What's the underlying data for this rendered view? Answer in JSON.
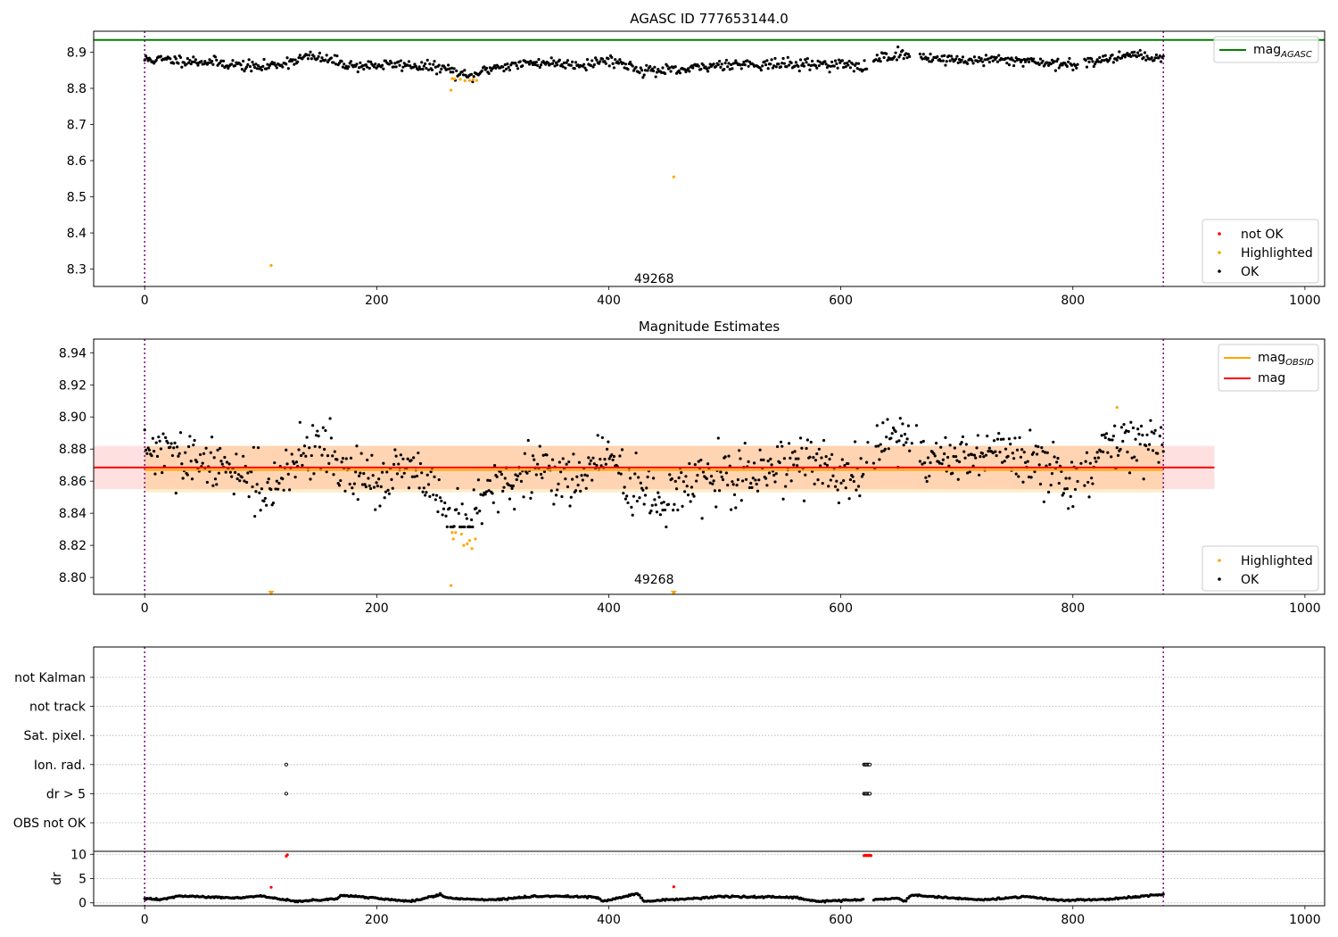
{
  "chart_data": [
    {
      "type": "scatter",
      "title": "AGASC ID 777653144.0",
      "xlim": [
        -44,
        1017
      ],
      "ylim": [
        8.252,
        8.958
      ],
      "xticks": [
        0,
        200,
        400,
        600,
        800,
        1000
      ],
      "yticks": [
        8.3,
        8.4,
        8.5,
        8.6,
        8.7,
        8.8,
        8.9
      ],
      "ytick_labels": [
        "8.3",
        "8.4",
        "8.5",
        "8.6",
        "8.7",
        "8.8",
        "8.9"
      ],
      "vlines": [
        0,
        878
      ],
      "annotation": {
        "text": "49268",
        "x": 439,
        "y": 8.262
      },
      "hline": {
        "name": "mag_AGASC",
        "label_base": "mag",
        "label_sub": "AGASC",
        "y": 8.934,
        "color": "#008000"
      },
      "legend_lines_position": "upper right",
      "legend_points_position": "lower right",
      "ok_series": {
        "name": "OK",
        "color": "#000000",
        "count": 880,
        "x_range": [
          0,
          878
        ],
        "baseline_knots": [
          [
            0,
            8.88
          ],
          [
            30,
            8.878
          ],
          [
            60,
            8.872
          ],
          [
            100,
            8.858
          ],
          [
            120,
            8.87
          ],
          [
            140,
            8.888
          ],
          [
            160,
            8.878
          ],
          [
            180,
            8.862
          ],
          [
            220,
            8.866
          ],
          [
            260,
            8.855
          ],
          [
            270,
            8.84
          ],
          [
            280,
            8.83
          ],
          [
            290,
            8.845
          ],
          [
            300,
            8.858
          ],
          [
            340,
            8.872
          ],
          [
            380,
            8.866
          ],
          [
            400,
            8.88
          ],
          [
            430,
            8.85
          ],
          [
            460,
            8.848
          ],
          [
            500,
            8.868
          ],
          [
            560,
            8.866
          ],
          [
            600,
            8.868
          ],
          [
            620,
            8.855
          ],
          [
            630,
            8.885
          ],
          [
            650,
            8.893
          ],
          [
            700,
            8.878
          ],
          [
            760,
            8.878
          ],
          [
            800,
            8.862
          ],
          [
            830,
            8.885
          ],
          [
            850,
            8.895
          ],
          [
            878,
            8.885
          ]
        ],
        "scatter_sd": 0.0075,
        "gaps": [
          [
            620,
            628
          ],
          [
            660,
            668
          ],
          [
            805,
            810
          ]
        ]
      },
      "series": [
        {
          "name": "not OK",
          "color": "#ff0000",
          "points": []
        },
        {
          "name": "Highlighted",
          "color": "#ffa500",
          "points": [
            [
              109,
              8.31
            ],
            [
              264,
              8.795
            ],
            [
              265,
              8.827
            ],
            [
              267,
              8.826
            ],
            [
              272,
              8.825
            ],
            [
              276,
              8.821
            ],
            [
              280,
              8.822
            ],
            [
              283,
              8.824
            ],
            [
              286,
              8.822
            ],
            [
              456,
              8.555
            ]
          ]
        }
      ]
    },
    {
      "type": "scatter",
      "title": "Magnitude Estimates",
      "xlim": [
        -44,
        1017
      ],
      "ylim": [
        8.7895,
        8.9485
      ],
      "xticks": [
        0,
        200,
        400,
        600,
        800,
        1000
      ],
      "yticks": [
        8.8,
        8.82,
        8.84,
        8.86,
        8.88,
        8.9,
        8.92,
        8.94
      ],
      "ytick_labels": [
        "8.80",
        "8.82",
        "8.84",
        "8.86",
        "8.88",
        "8.90",
        "8.92",
        "8.94"
      ],
      "vlines": [
        0,
        878
      ],
      "annotation": {
        "text": "49268",
        "x": 439,
        "y": 8.795
      },
      "lines": [
        {
          "name": "mag_OBSID",
          "label_base": "mag",
          "label_sub": "OBSID",
          "y": 8.867,
          "x_range": [
            0,
            878
          ],
          "color": "#ffa500",
          "band": [
            8.853,
            8.882
          ]
        },
        {
          "name": "mag",
          "label_base": "mag",
          "label_sub": "",
          "y": 8.8685,
          "x_range": [
            -44,
            922
          ],
          "color": "#ff0000",
          "band": [
            8.855,
            8.882
          ]
        }
      ],
      "legend_lines_position": "upper right",
      "legend_points_position": "lower right",
      "ok_series": {
        "name": "OK",
        "color": "#000000",
        "count": 880,
        "x_range": [
          0,
          878
        ],
        "baseline_knots": [
          [
            0,
            8.88
          ],
          [
            30,
            8.874
          ],
          [
            60,
            8.868
          ],
          [
            80,
            8.87
          ],
          [
            100,
            8.857
          ],
          [
            110,
            8.852
          ],
          [
            125,
            8.865
          ],
          [
            140,
            8.884
          ],
          [
            160,
            8.878
          ],
          [
            180,
            8.86
          ],
          [
            200,
            8.858
          ],
          [
            220,
            8.868
          ],
          [
            240,
            8.86
          ],
          [
            255,
            8.845
          ],
          [
            265,
            8.836
          ],
          [
            275,
            8.83
          ],
          [
            285,
            8.84
          ],
          [
            295,
            8.854
          ],
          [
            320,
            8.86
          ],
          [
            340,
            8.868
          ],
          [
            360,
            8.862
          ],
          [
            380,
            8.864
          ],
          [
            400,
            8.878
          ],
          [
            420,
            8.855
          ],
          [
            440,
            8.846
          ],
          [
            460,
            8.855
          ],
          [
            480,
            8.858
          ],
          [
            500,
            8.86
          ],
          [
            520,
            8.866
          ],
          [
            560,
            8.872
          ],
          [
            580,
            8.875
          ],
          [
            600,
            8.858
          ],
          [
            615,
            8.855
          ],
          [
            630,
            8.882
          ],
          [
            650,
            8.892
          ],
          [
            670,
            8.872
          ],
          [
            700,
            8.876
          ],
          [
            730,
            8.88
          ],
          [
            760,
            8.874
          ],
          [
            790,
            8.86
          ],
          [
            815,
            8.868
          ],
          [
            830,
            8.885
          ],
          [
            860,
            8.884
          ],
          [
            878,
            8.888
          ]
        ],
        "scatter_sd": 0.0085,
        "gaps": [
          [
            620,
            628
          ],
          [
            660,
            668
          ],
          [
            805,
            810
          ]
        ]
      },
      "series": [
        {
          "name": "Highlighted",
          "color": "#ffa500",
          "points": [
            [
              264,
              8.795
            ],
            [
              265,
              8.828
            ],
            [
              266,
              8.824
            ],
            [
              268,
              8.828
            ],
            [
              273,
              8.827
            ],
            [
              275,
              8.82
            ],
            [
              278,
              8.821
            ],
            [
              280,
              8.823
            ],
            [
              282,
              8.818
            ],
            [
              285,
              8.824
            ],
            [
              838,
              8.906
            ]
          ]
        },
        {
          "name": "Highlighted (below range)",
          "color": "#ffa500",
          "marker": "triangle-down",
          "points": [
            [
              109,
              8.7895
            ],
            [
              456,
              8.7895
            ]
          ]
        }
      ]
    },
    {
      "type": "scatter",
      "title": "",
      "xlim": [
        -44,
        1017
      ],
      "xticks": [],
      "vlines": [
        0,
        878
      ],
      "categories": [
        "not Kalman",
        "not track",
        "Sat. pixel.",
        "Ion. rad.",
        "dr > 5",
        "OBS not OK"
      ],
      "flag_points": [
        {
          "category": "Ion. rad.",
          "x": [
            122,
            620,
            621,
            622,
            623,
            624,
            625
          ]
        },
        {
          "category": "dr > 5",
          "x": [
            122,
            620,
            621,
            622,
            623,
            624,
            625
          ]
        }
      ]
    },
    {
      "type": "scatter",
      "title": "",
      "ylabel": "dr",
      "xlim": [
        -44,
        1017
      ],
      "ylim": [
        -0.6,
        10.6
      ],
      "xticks": [
        0,
        200,
        400,
        600,
        800,
        1000
      ],
      "yticks": [
        0,
        5,
        10
      ],
      "ytick_labels": [
        "0",
        "5",
        "10"
      ],
      "vlines": [
        0,
        878
      ],
      "ok_series": {
        "name": "OK",
        "color": "#000000",
        "count": 880,
        "x_range": [
          0,
          878
        ],
        "baseline_knots": [
          [
            0,
            1.0
          ],
          [
            12,
            0.6
          ],
          [
            30,
            1.4
          ],
          [
            80,
            1.0
          ],
          [
            100,
            1.4
          ],
          [
            130,
            0.3
          ],
          [
            165,
            0.8
          ],
          [
            170,
            1.6
          ],
          [
            230,
            0.3
          ],
          [
            255,
            1.7
          ],
          [
            260,
            1.0
          ],
          [
            300,
            0.6
          ],
          [
            340,
            1.4
          ],
          [
            390,
            1.2
          ],
          [
            395,
            0.3
          ],
          [
            425,
            1.9
          ],
          [
            430,
            0.3
          ],
          [
            500,
            1.3
          ],
          [
            560,
            1.1
          ],
          [
            580,
            0.3
          ],
          [
            650,
            0.9
          ],
          [
            655,
            0.2
          ],
          [
            660,
            1.6
          ],
          [
            720,
            0.6
          ],
          [
            760,
            1.3
          ],
          [
            790,
            0.5
          ],
          [
            830,
            0.7
          ],
          [
            878,
            1.8
          ]
        ],
        "scatter_sd": 0.08,
        "gaps": [
          [
            620,
            628
          ]
        ]
      },
      "series": [
        {
          "name": "not OK",
          "color": "#ff0000",
          "points": [
            [
              109,
              3.2
            ],
            [
              122,
              9.6
            ],
            [
              123,
              9.9
            ],
            [
              456,
              3.3
            ],
            [
              620,
              9.7
            ],
            [
              621,
              9.8
            ],
            [
              622,
              9.7
            ],
            [
              623,
              9.8
            ],
            [
              624,
              9.7
            ],
            [
              625,
              9.8
            ],
            [
              626,
              9.7
            ]
          ]
        }
      ]
    }
  ]
}
